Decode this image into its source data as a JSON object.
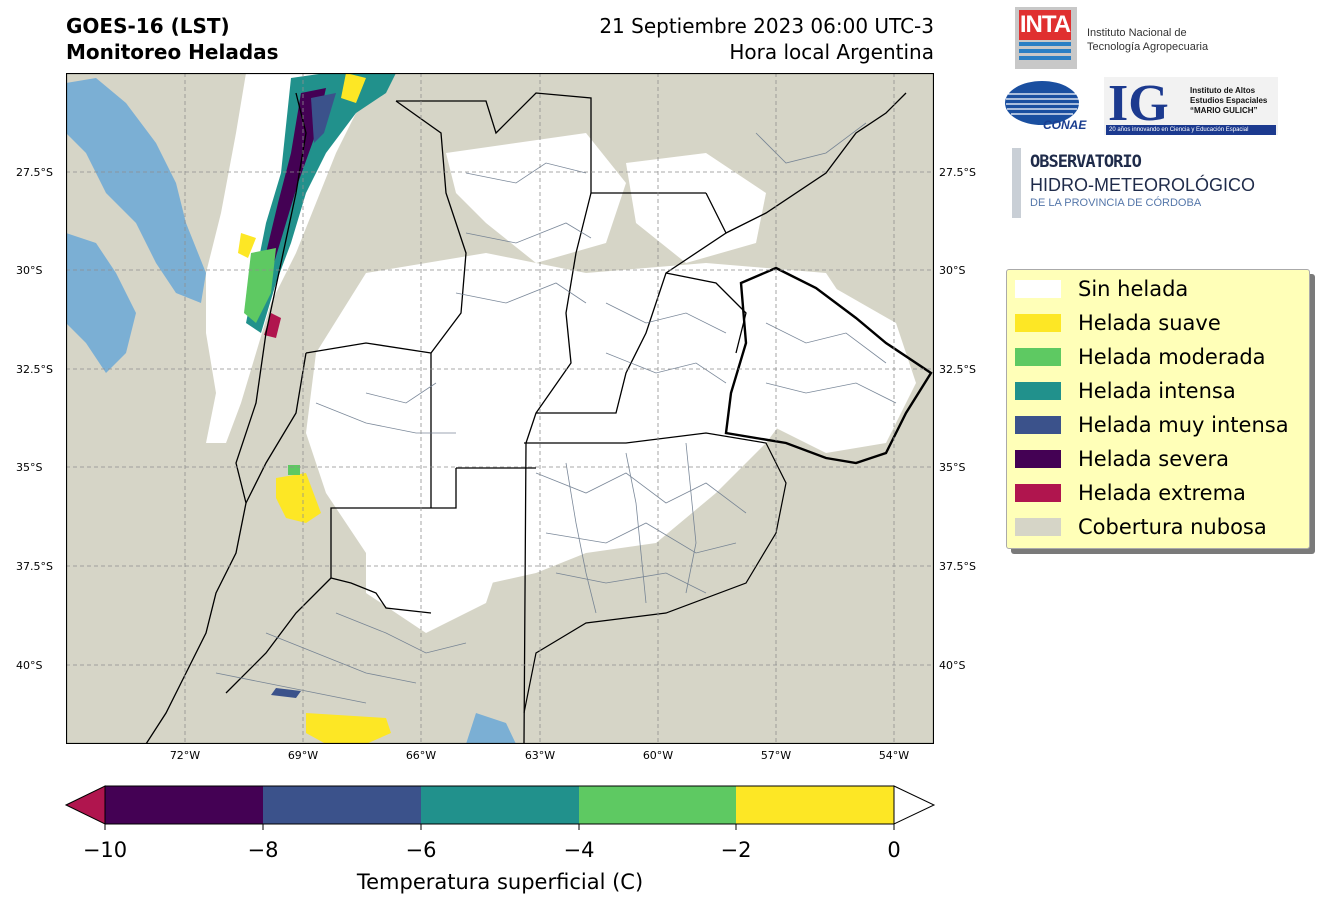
{
  "header": {
    "title_line1": "GOES-16 (LST)",
    "title_line2": "Monitoreo Heladas",
    "date_line": "21 Septiembre 2023 06:00 UTC-3",
    "local_time_line": "Hora local Argentina"
  },
  "map": {
    "lat_ticks": [
      "27.5°S",
      "30°S",
      "32.5°S",
      "35°S",
      "37.5°S",
      "40°S"
    ],
    "lon_ticks": [
      "72°W",
      "69°W",
      "66°W",
      "63°W",
      "60°W",
      "57°W",
      "54°W"
    ],
    "colors": {
      "cloud": "#d6d5c7",
      "no_frost": "#ffffff",
      "water": "#7bafd4",
      "border": "#000000",
      "district": "#6d7c8f"
    }
  },
  "logos": {
    "inta_mark": "INTA",
    "inta_name_line1": "Instituto Nacional de",
    "inta_name_line2": "Tecnología Agropecuaria",
    "conae": "CONAE",
    "ig_letters": "IG",
    "ig_name_line1": "Instituto de Altos",
    "ig_name_line2": "Estudios Espaciales",
    "ig_name_line3": "“MARIO GULICH”",
    "ig_strip": "20 años innovando en Ciencia y Educación Espacial",
    "obs_line1": "OBSERVATORIO",
    "obs_line2": "HIDRO-METEOROLÓGICO",
    "obs_line3": "DE LA PROVINCIA DE CÓRDOBA"
  },
  "legend": {
    "items": [
      {
        "label": "Sin helada",
        "color": "#ffffff"
      },
      {
        "label": "Helada suave",
        "color": "#fde725"
      },
      {
        "label": "Helada moderada",
        "color": "#5ec962"
      },
      {
        "label": "Helada intensa",
        "color": "#21918c"
      },
      {
        "label": "Helada muy intensa",
        "color": "#3b528b"
      },
      {
        "label": "Helada severa",
        "color": "#440154"
      },
      {
        "label": "Helada extrema",
        "color": "#b0154e"
      },
      {
        "label": "Cobertura nubosa",
        "color": "#d6d5c7"
      }
    ]
  },
  "colorbar": {
    "ticks": [
      "−10",
      "−8",
      "−6",
      "−4",
      "−2",
      "0"
    ],
    "label": "Temperatura superficial (C)",
    "segments": [
      "#440154",
      "#3b528b",
      "#21918c",
      "#5ec962",
      "#fde725"
    ],
    "under_color": "#b0154e",
    "over_color": "#ffffff"
  }
}
